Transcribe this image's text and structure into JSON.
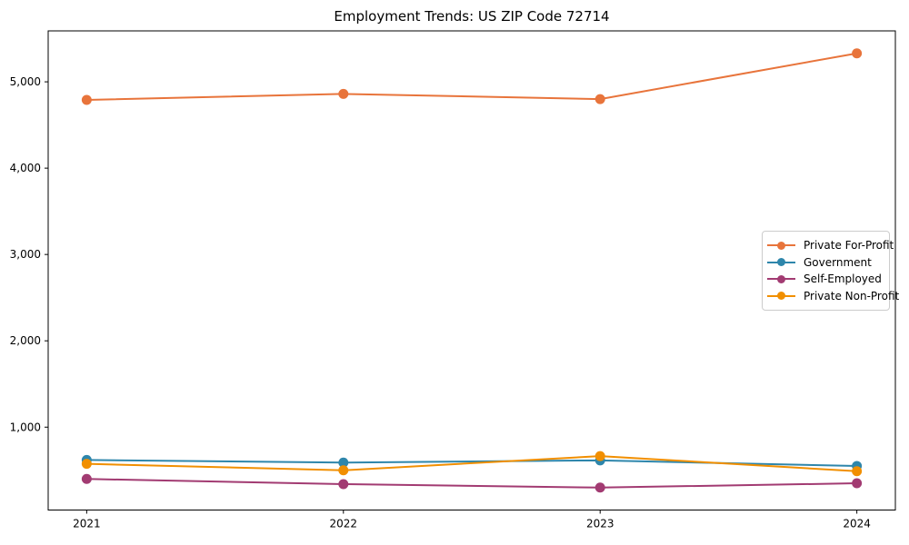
{
  "title": "Employment Trends: US ZIP Code 72714",
  "chart_data": {
    "type": "line",
    "title": "Employment Trends: US ZIP Code 72714",
    "xlabel": "",
    "ylabel": "",
    "x": [
      2021,
      2022,
      2023,
      2024
    ],
    "xtick_labels": [
      "2021",
      "2022",
      "2023",
      "2024"
    ],
    "yticks": [
      1000,
      2000,
      3000,
      4000,
      5000
    ],
    "ytick_labels": [
      "1,000",
      "2,000",
      "3,000",
      "4,000",
      "5,000"
    ],
    "xlim": [
      2020.85,
      2024.15
    ],
    "ylim": [
      40,
      5590
    ],
    "grid": false,
    "legend_position": "center right",
    "marker": "o",
    "series": [
      {
        "name": "Private For-Profit",
        "color": "#E8743B",
        "values": [
          4790,
          4860,
          4800,
          5330
        ]
      },
      {
        "name": "Government",
        "color": "#2E86AB",
        "values": [
          620,
          590,
          615,
          550
        ]
      },
      {
        "name": "Self-Employed",
        "color": "#A23B72",
        "values": [
          400,
          340,
          300,
          350
        ]
      },
      {
        "name": "Private Non-Profit",
        "color": "#F18F01",
        "values": [
          575,
          500,
          665,
          490
        ]
      }
    ]
  }
}
